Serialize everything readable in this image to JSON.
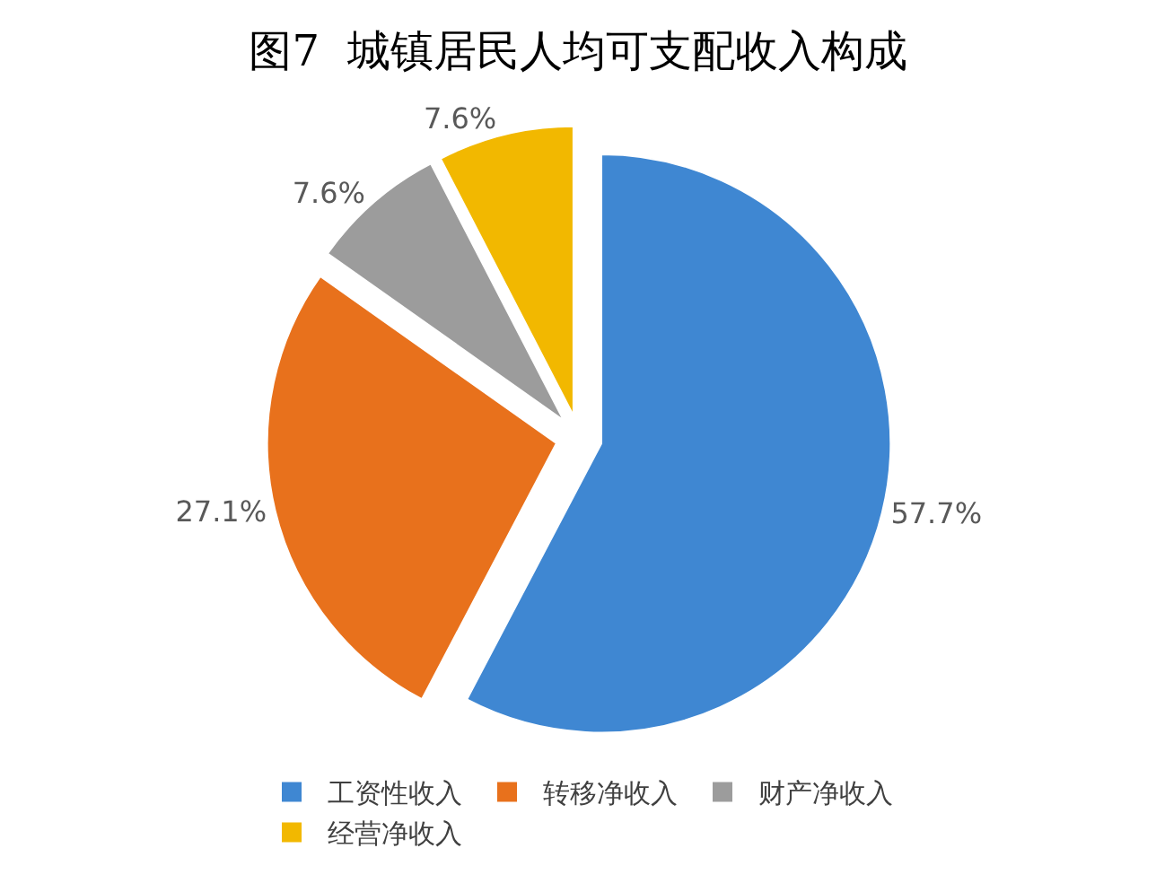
{
  "chart_data": {
    "type": "pie",
    "title": "图7  城镇居民人均可支配收入构成",
    "categories": [
      "工资性收入",
      "转移净收入",
      "财产净收入",
      "经营净收入"
    ],
    "values": [
      57.7,
      27.1,
      7.6,
      7.6
    ],
    "value_labels": [
      "57.7%",
      "27.1%",
      "7.6%",
      "7.6%"
    ],
    "colors": [
      "#3f87d2",
      "#e8711c",
      "#9c9c9c",
      "#f2b800"
    ],
    "legend": "bottom"
  }
}
